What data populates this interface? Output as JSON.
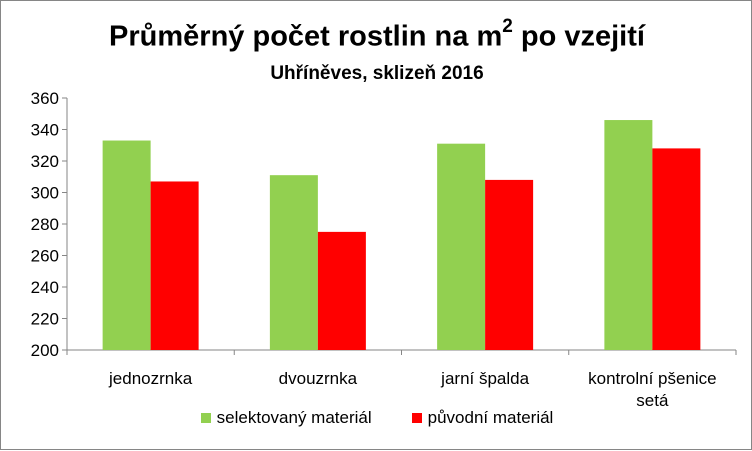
{
  "chart_data": {
    "type": "bar",
    "title": "Průměrný počet rostlin na m",
    "title_superscript": "2",
    "title_suffix": " po vzejití",
    "subtitle": "Uhříněves, sklizeň 2016",
    "categories": [
      [
        "jednozrnka"
      ],
      [
        "dvouzrnka"
      ],
      [
        "jarní špalda"
      ],
      [
        "kontrolní pšenice",
        "setá"
      ]
    ],
    "series": [
      {
        "name": "selektovaný materiál",
        "color": "#92D050",
        "values": [
          333,
          311,
          331,
          346
        ]
      },
      {
        "name": "původní materiál",
        "color": "#FF0000",
        "values": [
          307,
          275,
          308,
          328
        ]
      }
    ],
    "ylim": [
      200,
      360
    ],
    "yticks": [
      200,
      220,
      240,
      260,
      280,
      300,
      320,
      340,
      360
    ],
    "grid": false,
    "legend_position": "bottom"
  }
}
